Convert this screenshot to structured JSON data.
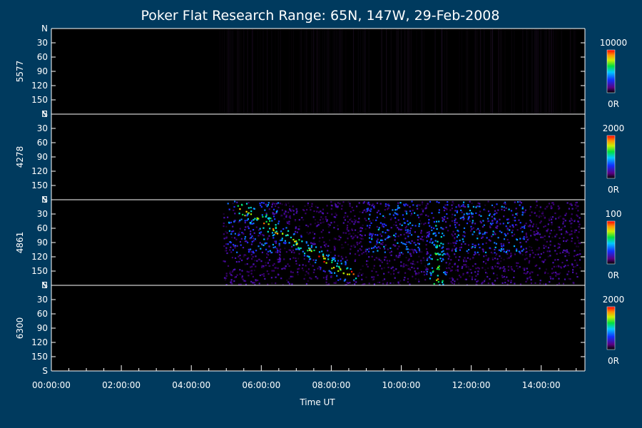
{
  "chart_data": {
    "type": "heatmap",
    "title": "Poker Flat Research Range: 65N, 147W, 29-Feb-2008",
    "xlabel": "Time UT",
    "x_ticks": [
      "00:00:00",
      "02:00:00",
      "04:00:00",
      "06:00:00",
      "08:00:00",
      "10:00:00",
      "12:00:00",
      "14:00:00"
    ],
    "xlim_hours": [
      0,
      15.25
    ],
    "y_ticks": [
      "N",
      "30",
      "60",
      "90",
      "120",
      "150",
      "S"
    ],
    "ylim": [
      0,
      180
    ],
    "colormap": "rainbow (black-purple-blue-cyan-green-yellow-orange-red)",
    "background": "#003a5e",
    "panels": [
      {
        "label": "5577",
        "colorbar_max": "10000",
        "colorbar_min": "0R",
        "data_start_hour": 4.75,
        "data_end_hour": 15.0,
        "intensity": "very faint"
      },
      {
        "label": "4278",
        "colorbar_max": "2000",
        "colorbar_min": "0R",
        "data_start_hour": null,
        "data_end_hour": null,
        "intensity": "none"
      },
      {
        "label": "4861",
        "colorbar_max": "100",
        "colorbar_min": "0R",
        "data_start_hour": 4.9,
        "data_end_hour": 15.1,
        "intensity": "strong",
        "arcs": [
          {
            "start_hour": 5.3,
            "end_hour": 8.7,
            "peak_hour": 8.3,
            "peak_angle": 155,
            "note": "equatorward-moving arc, green/yellow/orange peak near 08:00-08:30"
          },
          {
            "start_hour": 10.7,
            "end_hour": 11.3,
            "peak_hour": 11.0,
            "peak_angle": 150,
            "note": "narrow arc reaching orange near 11:00"
          }
        ]
      },
      {
        "label": "6300",
        "colorbar_max": "2000",
        "colorbar_min": "0R",
        "data_start_hour": null,
        "data_end_hour": null,
        "intensity": "none"
      }
    ]
  }
}
